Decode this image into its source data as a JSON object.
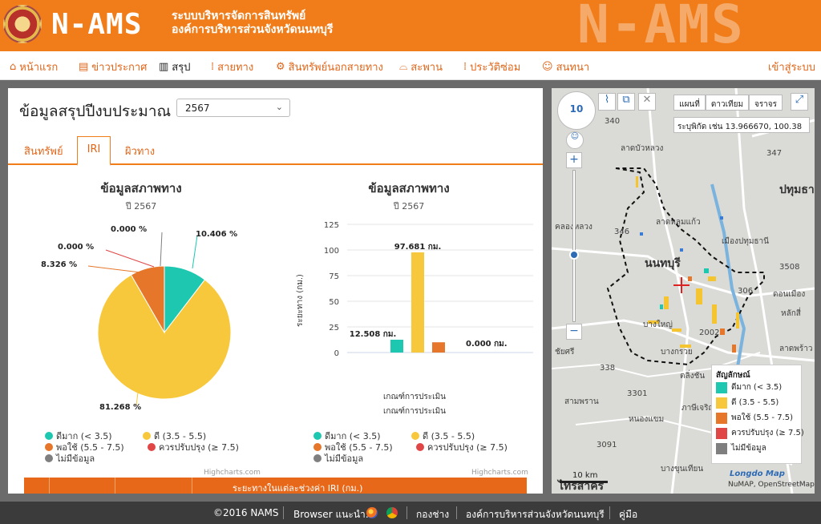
{
  "header": {
    "brand": "N-AMS",
    "subtitle_line1": "ระบบบริหารจัดการสินทรัพย์",
    "subtitle_line2": "องค์การบริหารส่วนจังหวัดนนทบุรี",
    "watermark": "N-AMS"
  },
  "nav": {
    "items": [
      {
        "icon": "home-icon",
        "glyph": "⌂",
        "label": "หน้าแรก"
      },
      {
        "icon": "news-icon",
        "glyph": "▤",
        "label": "ข่าวประกาศ"
      },
      {
        "icon": "bar-chart-icon",
        "glyph": "▥",
        "label": "สรุป"
      },
      {
        "icon": "road-icon",
        "glyph": "⁞",
        "label": "สายทาง"
      },
      {
        "icon": "gear-icon",
        "glyph": "⚙",
        "label": "สินทรัพย์นอกสายทาง"
      },
      {
        "icon": "bridge-icon",
        "glyph": "⌓",
        "label": "สะพาน"
      },
      {
        "icon": "history-icon",
        "glyph": "⁞",
        "label": "ประวัติซ่อม"
      },
      {
        "icon": "chat-icon",
        "glyph": "☺",
        "label": "สนทนา"
      }
    ],
    "login": "เข้าสู่ระบบ"
  },
  "summary": {
    "title": "ข้อมูลสรุปปีงบประมาณ",
    "year": "2567",
    "tabs": [
      "สินทรัพย์",
      "IRI",
      "ผิวทาง"
    ],
    "active_tab": "IRI",
    "table_header": "ระยะทางในแต่ละช่วงค่า IRI (กม.)"
  },
  "colors": {
    "very_good": "#1ec8b0",
    "good": "#f7c83b",
    "fair": "#e6762a",
    "poor": "#e04646",
    "no_data": "#7f7f7f",
    "accent": "#f07d1a"
  },
  "legend": [
    "ดีมาก (< 3.5)",
    "ดี (3.5 - 5.5)",
    "พอใช้ (5.5 - 7.5)",
    "ควรปรับปรุง (≥ 7.5)",
    "ไม่มีข้อมูล"
  ],
  "chart_data": [
    {
      "type": "pie",
      "title": "ข้อมูลสภาพทาง",
      "subtitle": "ปี 2567",
      "categories": [
        "ดีมาก (< 3.5)",
        "ดี (3.5 - 5.5)",
        "พอใช้ (5.5 - 7.5)",
        "ควรปรับปรุง (≥ 7.5)",
        "ไม่มีข้อมูล"
      ],
      "values": [
        10.406,
        81.268,
        8.326,
        0.0,
        0.0
      ],
      "value_labels": [
        "10.406 %",
        "81.268 %",
        "8.326 %",
        "0.000 %",
        "0.000 %"
      ],
      "credit": "Highcharts.com"
    },
    {
      "type": "bar",
      "title": "ข้อมูลสภาพทาง",
      "subtitle": "ปี 2567",
      "categories": [
        "เกณฑ์การประเมิน"
      ],
      "series": [
        {
          "name": "ดีมาก (< 3.5)",
          "values": [
            12.508
          ],
          "label": "12.508 กม."
        },
        {
          "name": "ดี (3.5 - 5.5)",
          "values": [
            97.681
          ],
          "label": "97.681 กม."
        },
        {
          "name": "พอใช้ (5.5 - 7.5)",
          "values": [
            10.0
          ],
          "label": ""
        },
        {
          "name": "ควรปรับปรุง (≥ 7.5)",
          "values": [
            0.0
          ],
          "label": "0.000 กม."
        },
        {
          "name": "ไม่มีข้อมูล",
          "values": [
            0.0
          ],
          "label": ""
        }
      ],
      "ylabel": "ระยะทาง (กม.)",
      "xlabel": "เกณฑ์การประเมิน",
      "yticks": [
        "0",
        "25",
        "50",
        "75",
        "100",
        "125"
      ],
      "ylim": [
        0,
        125
      ],
      "credit": "Highcharts.com"
    }
  ],
  "map": {
    "zoom": "10",
    "buttons": [
      "แผนที่",
      "ดาวเทียม",
      "จราจร"
    ],
    "coord_placeholder": "ระบุพิกัด เช่น 13.966670, 100.38",
    "legend_title": "สัญลักษณ์",
    "scale": "10 km",
    "attribution": "NuMAP, OpenStreetMap",
    "logo": "Longdo Map",
    "labels": [
      "340",
      "ลาดบัวหลวง",
      "347",
      "ปทุมธา",
      "ลาดหลุมแก้ว",
      "346",
      "เมืองปทุมธานี",
      "นนทบุรี",
      "3508",
      "306",
      "บางใหญ่",
      "2002",
      "บางกรวย",
      "338",
      "ตลิ่งชัน",
      "สามพราน",
      "3301",
      "หนองแขม",
      "3091",
      "บางขุนเทียน",
      "ลาดพร้าว",
      "ภาษีเจริญ",
      "ไทรสาคร",
      "ชัยศรี",
      "คลองหลวง",
      "ดอนเมือง",
      "หลักสี่"
    ]
  },
  "footer": {
    "copyright": "©2016 NAMS",
    "browser": "Browser แนะนำ:",
    "links": [
      "กองช่าง",
      "องค์การบริหารส่วนจังหวัดนนทบุรี",
      "คู่มือ"
    ]
  }
}
